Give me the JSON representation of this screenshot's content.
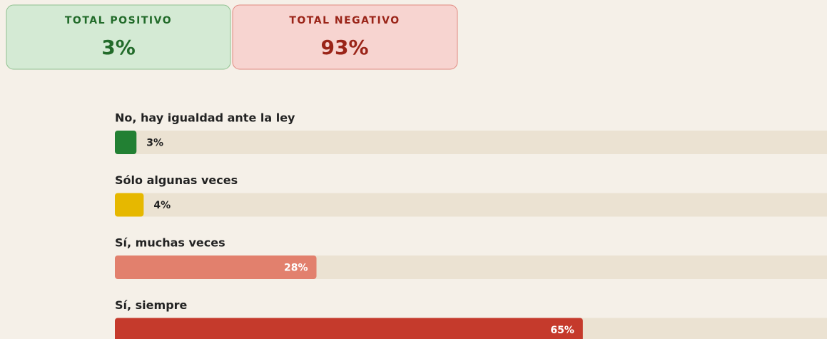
{
  "summary": [
    {
      "label": "TOTAL POSITIVO",
      "value": "3%"
    },
    {
      "label": "TOTAL NEGATIVO",
      "value": "93%"
    }
  ],
  "chart_data": {
    "type": "hbar",
    "categories": [
      "No, hay igualdad ante la ley",
      "Sólo algunas veces",
      "Sí, muchas veces",
      "Sí, siempre"
    ],
    "values": [
      3,
      4,
      28,
      65
    ],
    "value_labels": [
      "3%",
      "4%",
      "28%",
      "65%"
    ],
    "colors": [
      "#228033",
      "#e6b800",
      "#e2806d",
      "#c53a2c"
    ],
    "xlim": [
      0,
      100
    ]
  }
}
